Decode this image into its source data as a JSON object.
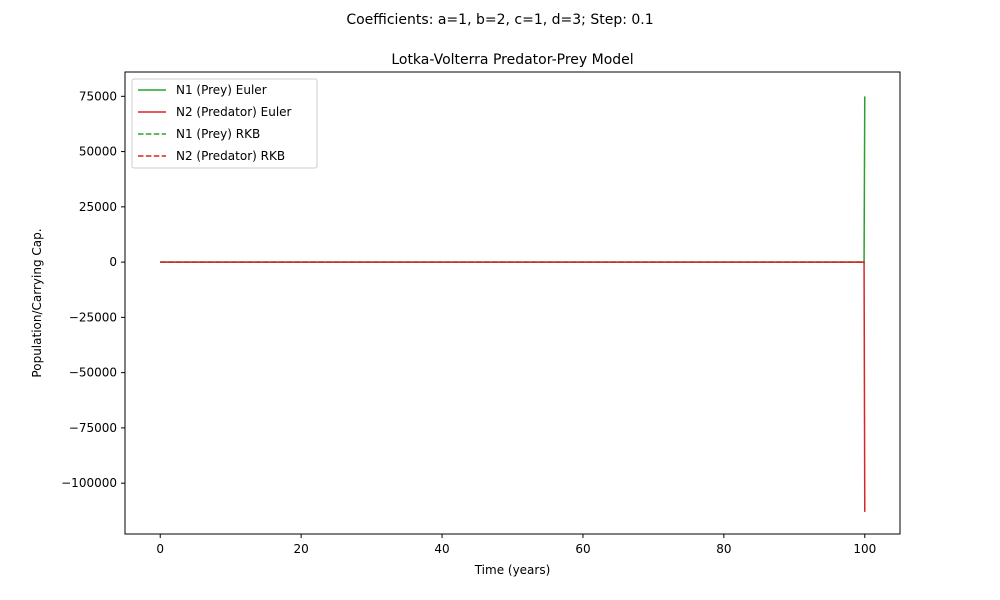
{
  "chart_data": {
    "type": "line",
    "suptitle": "Coefficients: a=1, b=2, c=1, d=3; Step: 0.1",
    "title": "Lotka-Volterra Predator-Prey Model",
    "xlabel": "Time (years)",
    "ylabel": "Population/Carrying Cap.",
    "xlim": [
      -5,
      105
    ],
    "ylim": [
      -123000,
      86000
    ],
    "xticks": [
      0,
      20,
      40,
      60,
      80,
      100
    ],
    "xtick_labels": [
      "0",
      "20",
      "40",
      "60",
      "80",
      "100"
    ],
    "yticks": [
      75000,
      50000,
      25000,
      0,
      -25000,
      -50000,
      -75000,
      -100000
    ],
    "ytick_labels": [
      "75000",
      "50000",
      "25000",
      "0",
      "−25000",
      "−50000",
      "−75000",
      "−100000"
    ],
    "grid": false,
    "legend_position": "top-left",
    "series": [
      {
        "name": "N1 (Prey) Euler",
        "color": "#2ca02c",
        "style": "solid",
        "x": [
          0,
          20,
          40,
          60,
          80,
          99.5,
          99.7,
          99.8,
          99.9,
          100.0
        ],
        "y": [
          0,
          0,
          0,
          0,
          0,
          0,
          0,
          0,
          0,
          75000
        ]
      },
      {
        "name": "N2 (Predator) Euler",
        "color": "#d62728",
        "style": "solid",
        "x": [
          0,
          20,
          40,
          60,
          80,
          99.5,
          99.7,
          99.8,
          99.9,
          100.0
        ],
        "y": [
          0,
          0,
          0,
          0,
          0,
          0,
          0,
          0,
          0,
          -113000
        ]
      },
      {
        "name": "N1 (Prey) RKB",
        "color": "#2ca02c",
        "style": "dashed",
        "x": [
          0,
          20,
          40,
          60,
          80,
          100
        ],
        "y": [
          0,
          0,
          0,
          0,
          0,
          0
        ]
      },
      {
        "name": "N2 (Predator) RKB",
        "color": "#d62728",
        "style": "dashed",
        "x": [
          0,
          20,
          40,
          60,
          80,
          100
        ],
        "y": [
          0,
          0,
          0,
          0,
          0,
          0
        ]
      }
    ]
  }
}
